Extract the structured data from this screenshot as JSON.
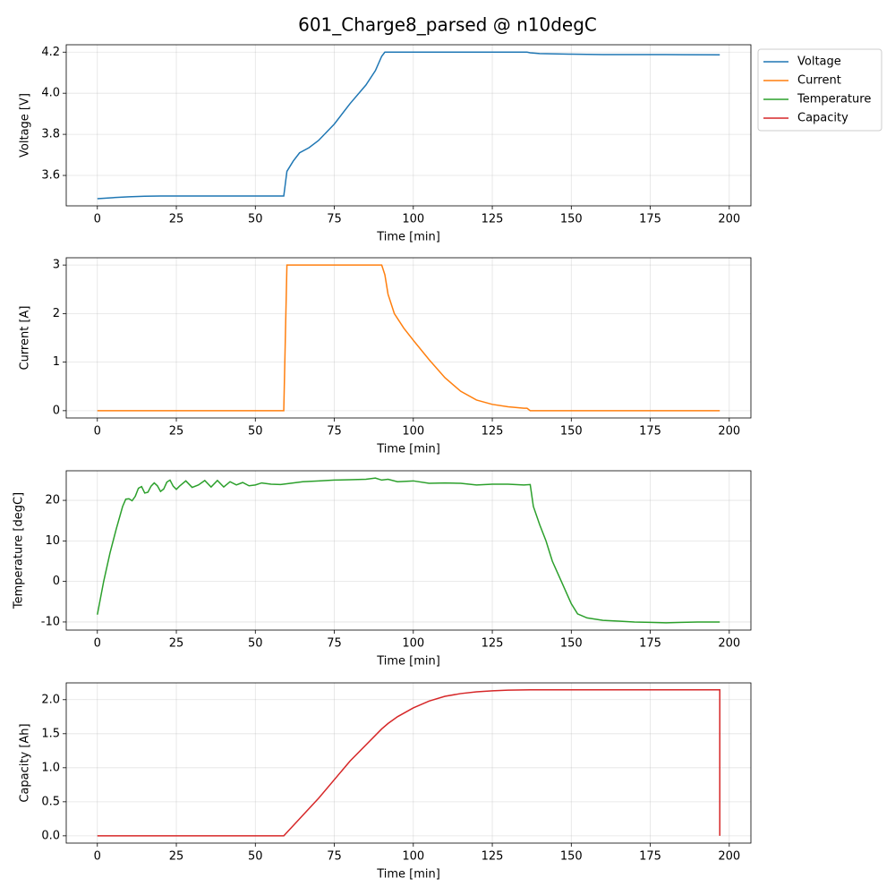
{
  "title": "601_Charge8_parsed @ n10degC",
  "legend": "upper-right-outside",
  "chart_data": [
    {
      "type": "line",
      "xlabel": "Time [min]",
      "ylabel": "Voltage [V]",
      "grid": true,
      "xlim": [
        -9.85,
        206.85
      ],
      "xticks": [
        0,
        25,
        50,
        75,
        100,
        125,
        150,
        175,
        200
      ],
      "ylim": [
        3.452,
        4.236
      ],
      "yticks": [
        3.6,
        3.8,
        {
          "value": 4,
          "label": "4.0"
        },
        4.2
      ],
      "x": [
        0,
        5,
        10,
        15,
        20,
        30,
        40,
        50,
        59,
        59.5,
        60,
        62,
        64,
        67,
        70,
        75,
        80,
        85,
        88,
        90,
        91,
        95,
        100,
        120,
        136,
        137,
        140,
        150,
        160,
        180,
        197
      ],
      "series": [
        {
          "name": "Voltage",
          "color": "#1f77b4",
          "values": [
            3.487,
            3.492,
            3.496,
            3.499,
            3.5,
            3.5,
            3.5,
            3.5,
            3.5,
            3.56,
            3.62,
            3.67,
            3.71,
            3.735,
            3.77,
            3.85,
            3.95,
            4.04,
            4.11,
            4.18,
            4.2,
            4.2,
            4.2,
            4.2,
            4.2,
            4.197,
            4.193,
            4.19,
            4.188,
            4.188,
            4.187
          ]
        }
      ]
    },
    {
      "type": "line",
      "xlabel": "Time [min]",
      "ylabel": "Current [A]",
      "grid": true,
      "xlim": [
        -9.85,
        206.85
      ],
      "xticks": [
        0,
        25,
        50,
        75,
        100,
        125,
        150,
        175,
        200
      ],
      "ylim": [
        -0.15,
        3.15
      ],
      "yticks": [
        0,
        1,
        2,
        3
      ],
      "x": [
        0,
        59,
        60,
        70,
        80,
        89,
        90,
        91,
        92,
        94,
        97,
        100,
        105,
        110,
        115,
        120,
        125,
        130,
        135,
        136,
        137,
        150,
        197
      ],
      "series": [
        {
          "name": "Current",
          "color": "#ff7f0e",
          "values": [
            0,
            0,
            3,
            3,
            3,
            3,
            3,
            2.8,
            2.4,
            2.0,
            1.7,
            1.45,
            1.05,
            0.68,
            0.4,
            0.22,
            0.13,
            0.08,
            0.05,
            0.05,
            0,
            0,
            0
          ]
        }
      ]
    },
    {
      "type": "line",
      "xlabel": "Time [min]",
      "ylabel": "Temperature [degC]",
      "grid": true,
      "xlim": [
        -9.85,
        206.85
      ],
      "xticks": [
        0,
        25,
        50,
        75,
        100,
        125,
        150,
        175,
        200
      ],
      "ylim": [
        -12,
        27.3
      ],
      "yticks": [
        -10,
        0,
        10,
        20
      ],
      "x": [
        0,
        2,
        4,
        6,
        8,
        9,
        10,
        11,
        12,
        13,
        14,
        15,
        16,
        17,
        18,
        19,
        20,
        21,
        22,
        23,
        24,
        25,
        26,
        28,
        30,
        32,
        34,
        36,
        38,
        40,
        42,
        44,
        46,
        48,
        50,
        52,
        55,
        58,
        60,
        65,
        70,
        75,
        80,
        85,
        88,
        90,
        92,
        95,
        100,
        105,
        110,
        115,
        120,
        125,
        130,
        135,
        137,
        138,
        140,
        142,
        144,
        146,
        148,
        150,
        152,
        155,
        160,
        165,
        170,
        175,
        180,
        185,
        190,
        197
      ],
      "series": [
        {
          "name": "Temperature",
          "color": "#2ca02c",
          "values": [
            -8.2,
            0,
            7,
            13,
            18.5,
            20.3,
            20.4,
            19.9,
            21,
            23,
            23.4,
            21.8,
            22,
            23.5,
            24.3,
            23.6,
            22.2,
            22.8,
            24.5,
            25,
            23.5,
            22.7,
            23.5,
            24.8,
            23.2,
            23.8,
            24.9,
            23.3,
            24.9,
            23.3,
            24.6,
            23.8,
            24.4,
            23.6,
            23.8,
            24.3,
            24,
            23.9,
            24.1,
            24.6,
            24.8,
            25,
            25.1,
            25.2,
            25.5,
            25,
            25.2,
            24.6,
            24.8,
            24.2,
            24.3,
            24.2,
            23.8,
            24,
            24,
            23.8,
            23.9,
            18.5,
            14,
            10,
            5,
            1.5,
            -2,
            -5.5,
            -8,
            -9,
            -9.6,
            -9.8,
            -10,
            -10.1,
            -10.2,
            -10.1,
            -10,
            -10
          ]
        }
      ]
    },
    {
      "type": "line",
      "xlabel": "Time [min]",
      "ylabel": "Capacity [Ah]",
      "grid": true,
      "xlim": [
        -9.85,
        206.85
      ],
      "xticks": [
        0,
        25,
        50,
        75,
        100,
        125,
        150,
        175,
        200
      ],
      "ylim": [
        -0.107,
        2.247
      ],
      "yticks": [
        {
          "value": 0,
          "label": "0.0"
        },
        0.5,
        {
          "value": 1,
          "label": "1.0"
        },
        1.5,
        {
          "value": 2,
          "label": "2.0"
        }
      ],
      "x": [
        0,
        59,
        70,
        80,
        90,
        92,
        95,
        100,
        105,
        110,
        115,
        120,
        125,
        130,
        137,
        150,
        197,
        197
      ],
      "series": [
        {
          "name": "Capacity",
          "color": "#d62728",
          "values": [
            0,
            0,
            0.55,
            1.1,
            1.57,
            1.65,
            1.75,
            1.88,
            1.98,
            2.05,
            2.09,
            2.115,
            2.13,
            2.14,
            2.145,
            2.145,
            2.145,
            0
          ]
        }
      ]
    }
  ]
}
